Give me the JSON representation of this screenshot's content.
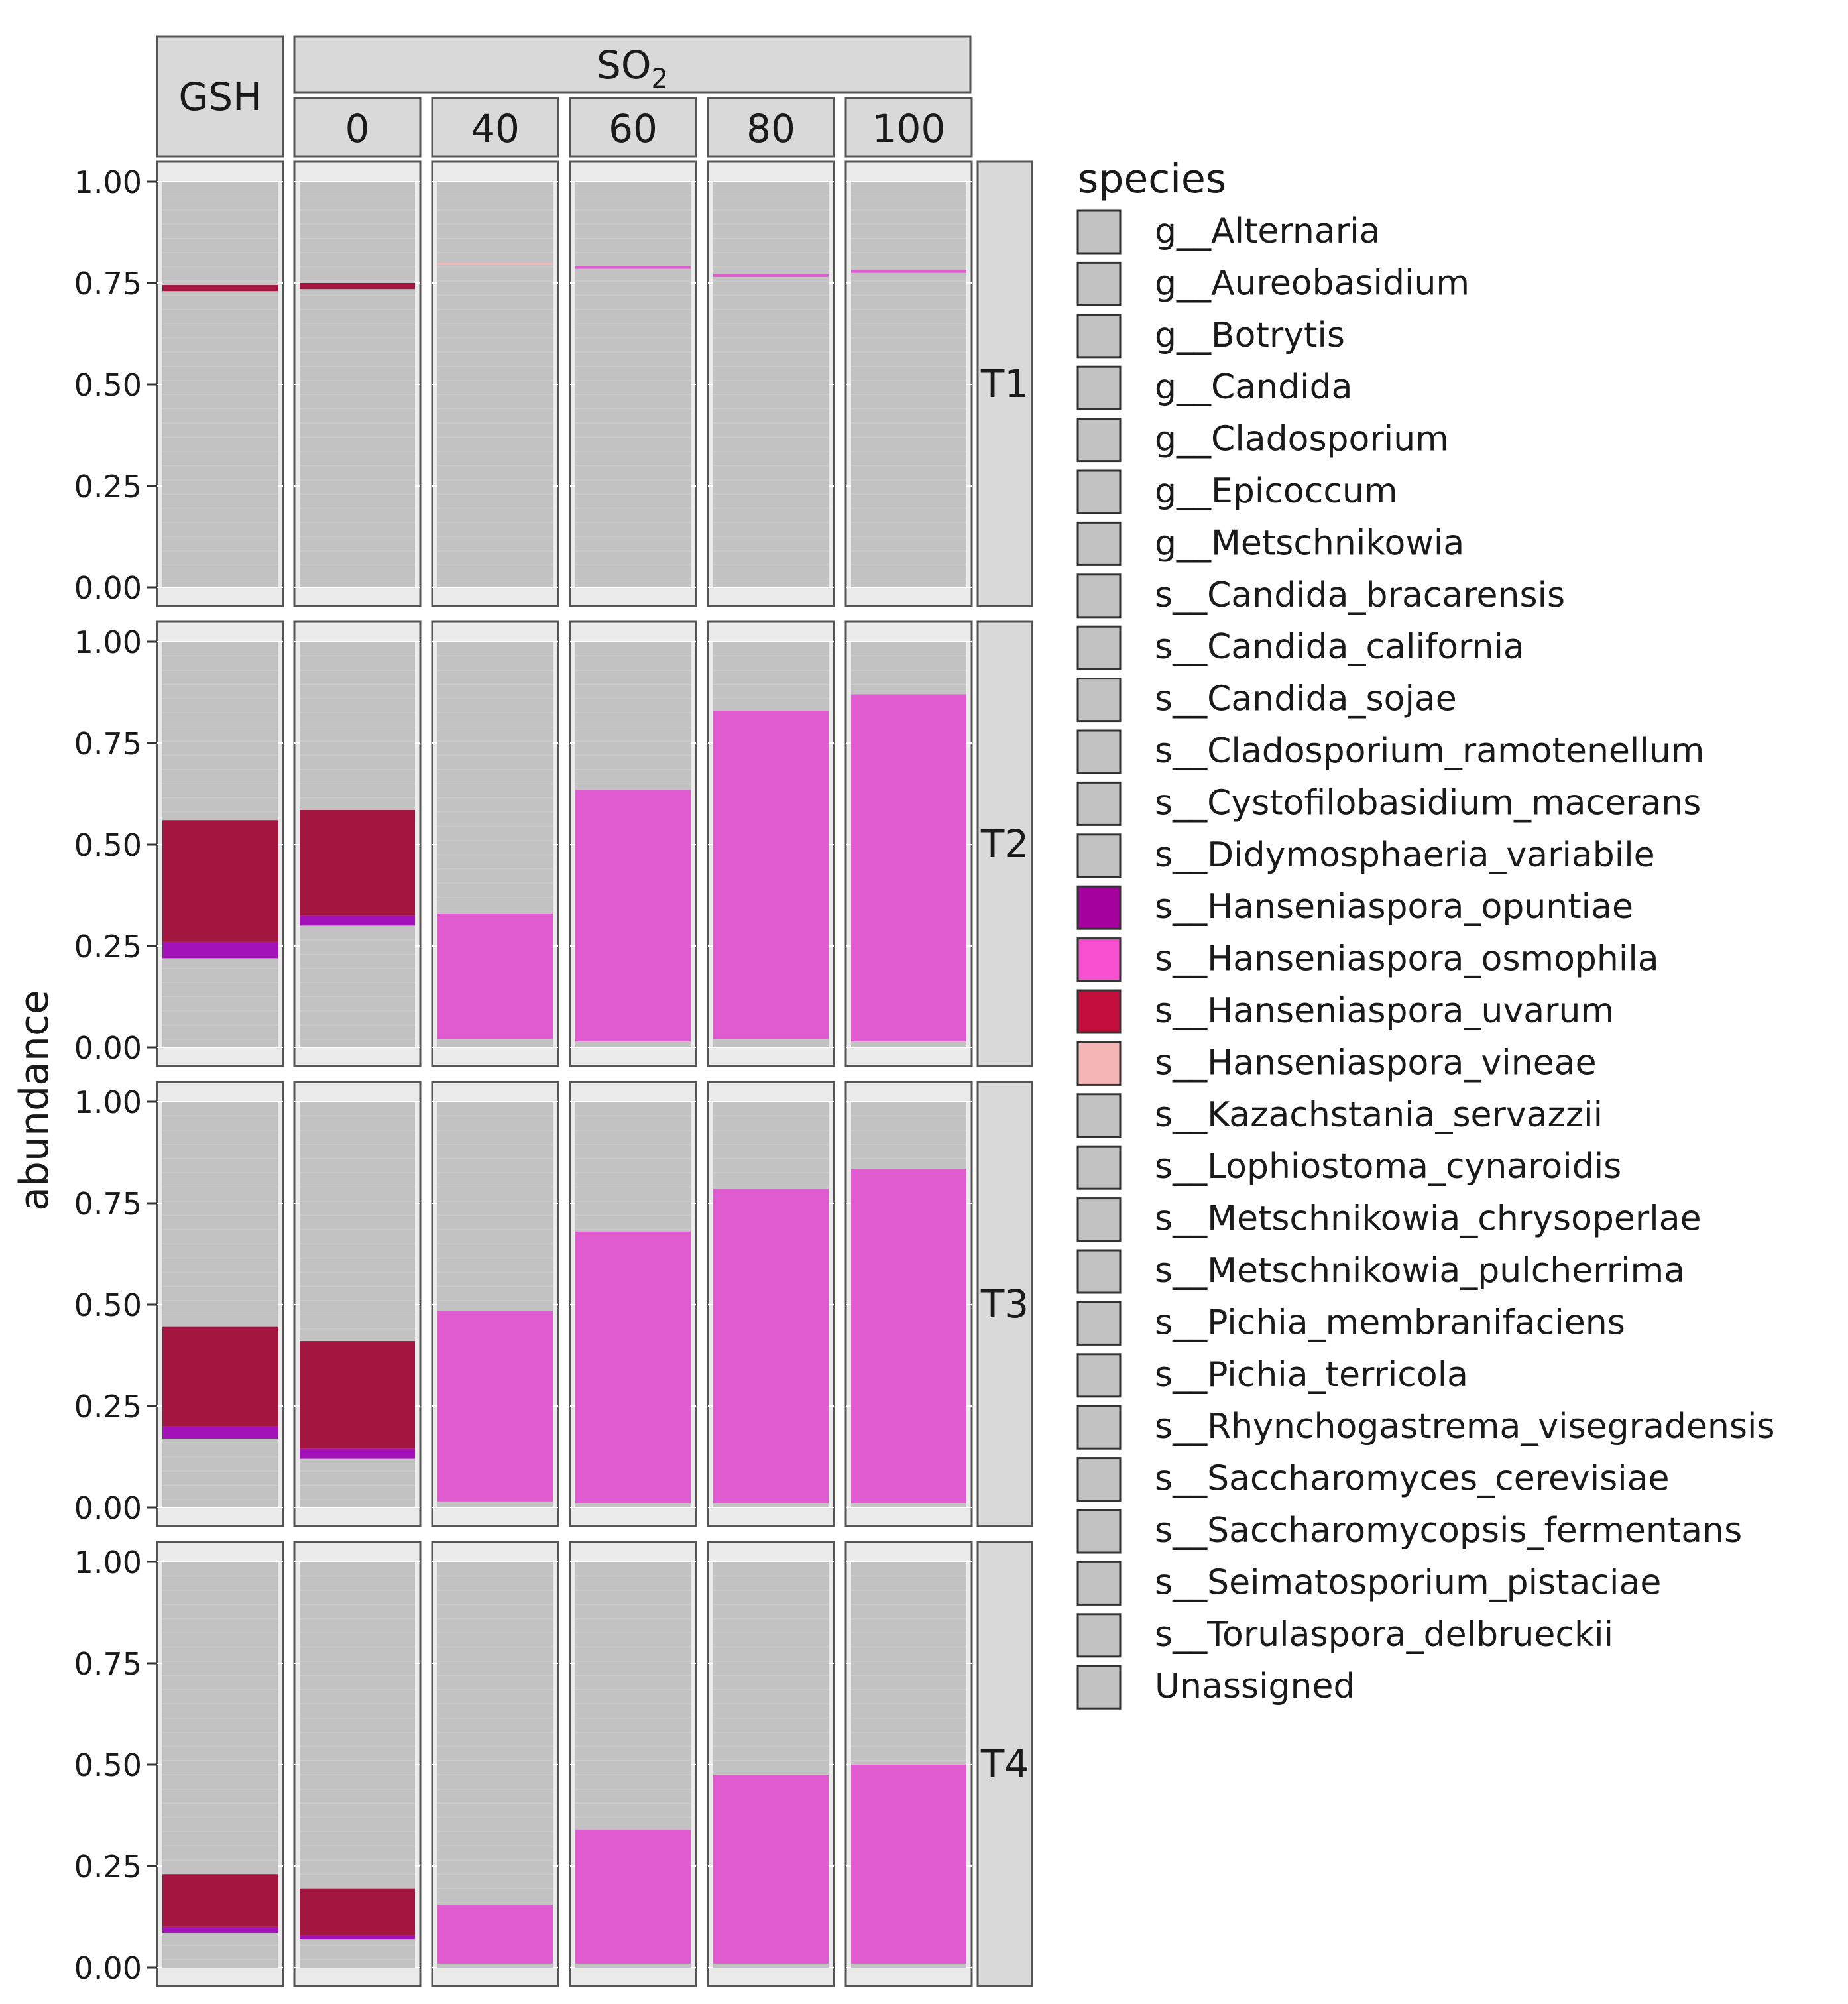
{
  "chart_data": {
    "type": "bar",
    "stacked": true,
    "facet_rows": [
      "T1",
      "T2",
      "T3",
      "T4"
    ],
    "facet_columns": [
      {
        "group": "GSH",
        "level": ""
      },
      {
        "group": "SO2",
        "level": "0"
      },
      {
        "group": "SO2",
        "level": "40"
      },
      {
        "group": "SO2",
        "level": "60"
      },
      {
        "group": "SO2",
        "level": "80"
      },
      {
        "group": "SO2",
        "level": "100"
      }
    ],
    "strip_labels": {
      "gsh": "GSH",
      "so2": "SO",
      "so2_subscript": "2",
      "levels": [
        "0",
        "40",
        "60",
        "80",
        "100"
      ]
    },
    "ylabel": "abundance",
    "ylim": [
      0,
      1
    ],
    "yticks": [
      "0.00",
      "0.25",
      "0.50",
      "0.75",
      "1.00"
    ],
    "legend": {
      "title": "species",
      "position": "right",
      "entries": [
        {
          "name": "g__Alternaria",
          "color": "#c2c2c2"
        },
        {
          "name": "g__Aureobasidium",
          "color": "#c2c2c2"
        },
        {
          "name": "g__Botrytis",
          "color": "#c2c2c2"
        },
        {
          "name": "g__Candida",
          "color": "#c2c2c2"
        },
        {
          "name": "g__Cladosporium",
          "color": "#c2c2c2"
        },
        {
          "name": "g__Epicoccum",
          "color": "#c2c2c2"
        },
        {
          "name": "g__Metschnikowia",
          "color": "#c2c2c2"
        },
        {
          "name": "s__Candida_bracarensis",
          "color": "#c2c2c2"
        },
        {
          "name": "s__Candida_california",
          "color": "#c2c2c2"
        },
        {
          "name": "s__Candida_sojae",
          "color": "#c2c2c2"
        },
        {
          "name": "s__Cladosporium_ramotenellum",
          "color": "#c2c2c2"
        },
        {
          "name": "s__Cystofilobasidium_macerans",
          "color": "#c2c2c2"
        },
        {
          "name": "s__Didymosphaeria_variabile",
          "color": "#c2c2c2"
        },
        {
          "name": "s__Hanseniaspora_opuntiae",
          "color": "#a3009e"
        },
        {
          "name": "s__Hanseniaspora_osmophila",
          "color": "#f74fcf"
        },
        {
          "name": "s__Hanseniaspora_uvarum",
          "color": "#c40f3c"
        },
        {
          "name": "s__Hanseniaspora_vineae",
          "color": "#f5b5b5"
        },
        {
          "name": "s__Kazachstania_servazzii",
          "color": "#c2c2c2"
        },
        {
          "name": "s__Lophiostoma_cynaroidis",
          "color": "#c2c2c2"
        },
        {
          "name": "s__Metschnikowia_chrysoperlae",
          "color": "#c2c2c2"
        },
        {
          "name": "s__Metschnikowia_pulcherrima",
          "color": "#c2c2c2"
        },
        {
          "name": "s__Pichia_membranifaciens",
          "color": "#c2c2c2"
        },
        {
          "name": "s__Pichia_terricola",
          "color": "#c2c2c2"
        },
        {
          "name": "s__Rhynchogastrema_visegradensis",
          "color": "#c2c2c2"
        },
        {
          "name": "s__Saccharomyces_cerevisiae",
          "color": "#c2c2c2"
        },
        {
          "name": "s__Saccharomycopsis_fermentans",
          "color": "#c2c2c2"
        },
        {
          "name": "s__Seimatosporium_pistaciae",
          "color": "#c2c2c2"
        },
        {
          "name": "s__Torulaspora_delbrueckii",
          "color": "#c2c2c2"
        },
        {
          "name": "Unassigned",
          "color": "#c2c2c2"
        }
      ]
    },
    "panels": [
      {
        "row": "T1",
        "segments": [
          [
            {
              "species": "s__Hanseniaspora_uvarum",
              "from": 0.73,
              "to": 0.745
            }
          ],
          [
            {
              "species": "s__Hanseniaspora_uvarum",
              "from": 0.735,
              "to": 0.75
            }
          ],
          [
            {
              "species": "s__Hanseniaspora_vineae",
              "from": 0.795,
              "to": 0.8
            }
          ],
          [
            {
              "species": "s__Hanseniaspora_osmophila",
              "from": 0.785,
              "to": 0.792
            }
          ],
          [
            {
              "species": "s__Hanseniaspora_osmophila",
              "from": 0.765,
              "to": 0.772
            }
          ],
          [
            {
              "species": "s__Hanseniaspora_osmophila",
              "from": 0.775,
              "to": 0.782
            }
          ]
        ]
      },
      {
        "row": "T2",
        "segments": [
          [
            {
              "species": "s__Hanseniaspora_opuntiae",
              "from": 0.22,
              "to": 0.26
            },
            {
              "species": "s__Hanseniaspora_uvarum",
              "from": 0.26,
              "to": 0.56
            }
          ],
          [
            {
              "species": "s__Hanseniaspora_opuntiae",
              "from": 0.3,
              "to": 0.325
            },
            {
              "species": "s__Hanseniaspora_uvarum",
              "from": 0.325,
              "to": 0.585
            }
          ],
          [
            {
              "species": "s__Hanseniaspora_osmophila",
              "from": 0.02,
              "to": 0.33
            }
          ],
          [
            {
              "species": "s__Hanseniaspora_osmophila",
              "from": 0.015,
              "to": 0.635
            }
          ],
          [
            {
              "species": "s__Hanseniaspora_osmophila",
              "from": 0.02,
              "to": 0.83
            }
          ],
          [
            {
              "species": "s__Hanseniaspora_osmophila",
              "from": 0.015,
              "to": 0.87
            }
          ]
        ]
      },
      {
        "row": "T3",
        "segments": [
          [
            {
              "species": "s__Hanseniaspora_opuntiae",
              "from": 0.17,
              "to": 0.2
            },
            {
              "species": "s__Hanseniaspora_uvarum",
              "from": 0.2,
              "to": 0.445
            }
          ],
          [
            {
              "species": "s__Hanseniaspora_opuntiae",
              "from": 0.12,
              "to": 0.145
            },
            {
              "species": "s__Hanseniaspora_uvarum",
              "from": 0.145,
              "to": 0.41
            }
          ],
          [
            {
              "species": "s__Hanseniaspora_osmophila",
              "from": 0.015,
              "to": 0.485
            }
          ],
          [
            {
              "species": "s__Hanseniaspora_osmophila",
              "from": 0.01,
              "to": 0.68
            }
          ],
          [
            {
              "species": "s__Hanseniaspora_osmophila",
              "from": 0.01,
              "to": 0.785
            }
          ],
          [
            {
              "species": "s__Hanseniaspora_osmophila",
              "from": 0.01,
              "to": 0.835
            }
          ]
        ]
      },
      {
        "row": "T4",
        "segments": [
          [
            {
              "species": "s__Hanseniaspora_opuntiae",
              "from": 0.085,
              "to": 0.1
            },
            {
              "species": "s__Hanseniaspora_uvarum",
              "from": 0.1,
              "to": 0.23
            }
          ],
          [
            {
              "species": "s__Hanseniaspora_opuntiae",
              "from": 0.07,
              "to": 0.08
            },
            {
              "species": "s__Hanseniaspora_uvarum",
              "from": 0.08,
              "to": 0.195
            }
          ],
          [
            {
              "species": "s__Hanseniaspora_osmophila",
              "from": 0.01,
              "to": 0.155
            }
          ],
          [
            {
              "species": "s__Hanseniaspora_osmophila",
              "from": 0.01,
              "to": 0.34
            }
          ],
          [
            {
              "species": "s__Hanseniaspora_osmophila",
              "from": 0.01,
              "to": 0.475
            }
          ],
          [
            {
              "species": "s__Hanseniaspora_osmophila",
              "from": 0.01,
              "to": 0.5
            }
          ]
        ]
      }
    ]
  }
}
